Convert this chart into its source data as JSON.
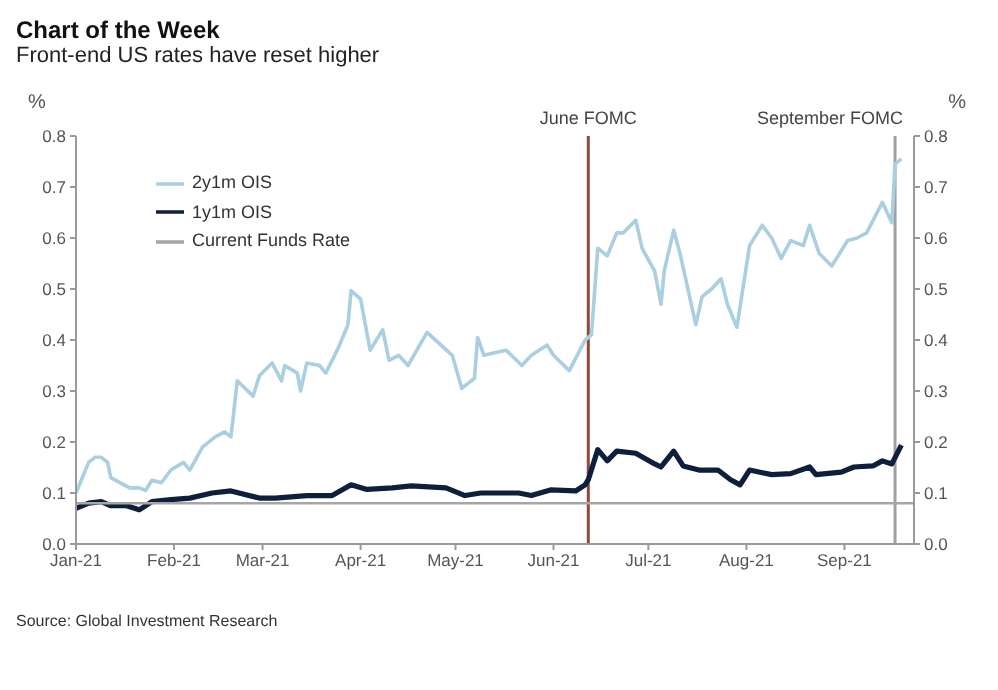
{
  "chart_data": {
    "type": "line",
    "title": "Chart of the Week",
    "subtitle": "Front-end US rates have reset higher",
    "ylabel": "%",
    "y2label": "%",
    "xlim": [
      "2021-01-01",
      "2021-09-23"
    ],
    "xticks": [
      {
        "value": "2021-01-01",
        "label": "Jan-21"
      },
      {
        "value": "2021-02-01",
        "label": "Feb-21"
      },
      {
        "value": "2021-03-01",
        "label": "Mar-21"
      },
      {
        "value": "2021-04-01",
        "label": "Apr-21"
      },
      {
        "value": "2021-05-01",
        "label": "May-21"
      },
      {
        "value": "2021-06-01",
        "label": "Jun-21"
      },
      {
        "value": "2021-07-01",
        "label": "Jul-21"
      },
      {
        "value": "2021-08-01",
        "label": "Aug-21"
      },
      {
        "value": "2021-09-01",
        "label": "Sep-21"
      }
    ],
    "ylim": [
      0,
      0.8
    ],
    "yticks": [
      {
        "value": 0,
        "label": "0.0"
      },
      0.1,
      0.2,
      0.3,
      0.4,
      0.5,
      0.6,
      0.7,
      0.8
    ],
    "y2lim": [
      0,
      0.8
    ],
    "y2ticks": [
      {
        "value": 0,
        "label": "0.0"
      },
      0.1,
      0.2,
      0.3,
      0.4,
      0.5,
      0.6,
      0.7,
      0.8
    ],
    "grid": false,
    "legend": "top left",
    "marker": "none",
    "line_style": "solid",
    "series": [
      {
        "name": "2y1m OIS",
        "color": "#a9cfe0",
        "x": [
          "2021-01-01",
          "2021-01-05",
          "2021-01-07",
          "2021-01-09",
          "2021-01-11",
          "2021-01-12",
          "2021-01-15",
          "2021-01-18",
          "2021-01-21",
          "2021-01-23",
          "2021-01-25",
          "2021-01-28",
          "2021-01-31",
          "2021-02-04",
          "2021-02-06",
          "2021-02-10",
          "2021-02-14",
          "2021-02-17",
          "2021-02-19",
          "2021-02-21",
          "2021-02-26",
          "2021-02-28",
          "2021-03-04",
          "2021-03-07",
          "2021-03-08",
          "2021-03-12",
          "2021-03-13",
          "2021-03-15",
          "2021-03-19",
          "2021-03-21",
          "2021-03-25",
          "2021-03-28",
          "2021-03-29",
          "2021-04-01",
          "2021-04-04",
          "2021-04-08",
          "2021-04-10",
          "2021-04-13",
          "2021-04-16",
          "2021-04-22",
          "2021-04-30",
          "2021-05-03",
          "2021-05-07",
          "2021-05-08",
          "2021-05-10",
          "2021-05-17",
          "2021-05-22",
          "2021-05-25",
          "2021-05-30",
          "2021-06-01",
          "2021-06-06",
          "2021-06-11",
          "2021-06-13",
          "2021-06-15",
          "2021-06-18",
          "2021-06-21",
          "2021-06-23",
          "2021-06-27",
          "2021-06-29",
          "2021-07-03",
          "2021-07-05",
          "2021-07-06",
          "2021-07-09",
          "2021-07-11",
          "2021-07-16",
          "2021-07-18",
          "2021-07-21",
          "2021-07-24",
          "2021-07-26",
          "2021-07-29",
          "2021-08-02",
          "2021-08-06",
          "2021-08-09",
          "2021-08-12",
          "2021-08-15",
          "2021-08-19",
          "2021-08-21",
          "2021-08-24",
          "2021-08-28",
          "2021-09-02",
          "2021-09-05",
          "2021-09-08",
          "2021-09-13",
          "2021-09-16",
          "2021-09-17",
          "2021-09-19"
        ],
        "values": [
          0.1,
          0.16,
          0.17,
          0.17,
          0.16,
          0.13,
          0.12,
          0.11,
          0.11,
          0.105,
          0.125,
          0.12,
          0.145,
          0.16,
          0.145,
          0.19,
          0.21,
          0.22,
          0.21,
          0.32,
          0.29,
          0.33,
          0.355,
          0.32,
          0.35,
          0.335,
          0.3,
          0.355,
          0.35,
          0.335,
          0.385,
          0.43,
          0.497,
          0.48,
          0.38,
          0.42,
          0.36,
          0.37,
          0.35,
          0.415,
          0.37,
          0.305,
          0.325,
          0.405,
          0.37,
          0.38,
          0.35,
          0.37,
          0.39,
          0.37,
          0.34,
          0.4,
          0.41,
          0.58,
          0.565,
          0.61,
          0.61,
          0.635,
          0.58,
          0.535,
          0.47,
          0.535,
          0.615,
          0.57,
          0.43,
          0.485,
          0.5,
          0.52,
          0.47,
          0.425,
          0.585,
          0.625,
          0.6,
          0.56,
          0.595,
          0.585,
          0.625,
          0.57,
          0.545,
          0.595,
          0.6,
          0.61,
          0.67,
          0.63,
          0.745,
          0.755
        ]
      },
      {
        "name": "1y1m OIS",
        "color": "#0d1f3c",
        "x": [
          "2021-01-01",
          "2021-01-05",
          "2021-01-09",
          "2021-01-12",
          "2021-01-17",
          "2021-01-21",
          "2021-01-25",
          "2021-01-31",
          "2021-02-06",
          "2021-02-13",
          "2021-02-19",
          "2021-02-28",
          "2021-03-05",
          "2021-03-15",
          "2021-03-23",
          "2021-03-29",
          "2021-04-03",
          "2021-04-11",
          "2021-04-17",
          "2021-04-28",
          "2021-05-04",
          "2021-05-09",
          "2021-05-11",
          "2021-05-21",
          "2021-05-25",
          "2021-05-31",
          "2021-06-08",
          "2021-06-11",
          "2021-06-12",
          "2021-06-15",
          "2021-06-18",
          "2021-06-21",
          "2021-06-27",
          "2021-07-03",
          "2021-07-05",
          "2021-07-09",
          "2021-07-12",
          "2021-07-17",
          "2021-07-23",
          "2021-07-27",
          "2021-07-30",
          "2021-08-02",
          "2021-08-09",
          "2021-08-15",
          "2021-08-21",
          "2021-08-23",
          "2021-08-31",
          "2021-09-04",
          "2021-09-10",
          "2021-09-13",
          "2021-09-16",
          "2021-09-19"
        ],
        "values": [
          0.07,
          0.08,
          0.083,
          0.075,
          0.075,
          0.067,
          0.083,
          0.087,
          0.09,
          0.1,
          0.104,
          0.09,
          0.09,
          0.095,
          0.095,
          0.116,
          0.107,
          0.11,
          0.114,
          0.11,
          0.095,
          0.1,
          0.1,
          0.1,
          0.095,
          0.106,
          0.104,
          0.116,
          0.126,
          0.185,
          0.163,
          0.182,
          0.178,
          0.157,
          0.151,
          0.182,
          0.153,
          0.145,
          0.145,
          0.126,
          0.116,
          0.145,
          0.136,
          0.138,
          0.151,
          0.136,
          0.141,
          0.151,
          0.153,
          0.163,
          0.157,
          0.194
        ]
      },
      {
        "name": "Current Funds Rate",
        "color": "#a6a6a6",
        "x": [
          "2021-01-01",
          "2021-09-23"
        ],
        "values": [
          0.08,
          0.08
        ]
      }
    ],
    "ref_lines": [
      {
        "axis": "x",
        "value": "2021-06-12",
        "label": "June FOMC",
        "color": "#8b4a3a"
      },
      {
        "axis": "x",
        "value": "2021-09-17",
        "label": "September FOMC",
        "color": "#a0a0a0"
      }
    ],
    "annotations": [
      "Source: Global Investment Research"
    ]
  }
}
